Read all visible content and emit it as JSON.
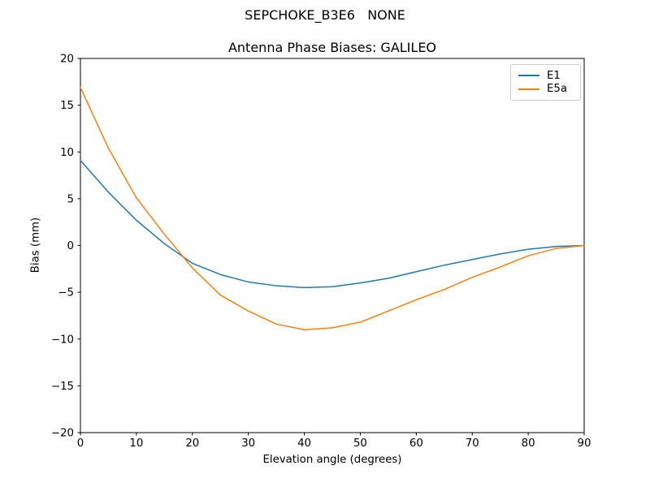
{
  "figure": {
    "title": "SEPCHOKE_B3E6   NONE",
    "subtitle": "Antenna Phase Biases: GALILEO",
    "background_color": "#ffffff"
  },
  "chart_data": {
    "type": "line",
    "suptitle": "SEPCHOKE_B3E6   NONE",
    "title": "Antenna Phase Biases: GALILEO",
    "xlabel": "Elevation angle (degrees)",
    "ylabel": "Bias (mm)",
    "xlim": [
      0,
      90
    ],
    "ylim": [
      -20,
      20
    ],
    "grid": false,
    "legend_position": "upper right",
    "x_ticks": [
      0,
      10,
      20,
      30,
      40,
      50,
      60,
      70,
      80,
      90
    ],
    "y_ticks": [
      -20,
      -15,
      -10,
      -5,
      0,
      5,
      10,
      15,
      20
    ],
    "x_tick_labels": [
      "0",
      "10",
      "20",
      "30",
      "40",
      "50",
      "60",
      "70",
      "80",
      "90"
    ],
    "y_tick_labels": [
      "−20",
      "−15",
      "−10",
      "−5",
      "0",
      "5",
      "10",
      "15",
      "20"
    ],
    "x": [
      0,
      5,
      10,
      15,
      20,
      25,
      30,
      35,
      40,
      45,
      50,
      55,
      60,
      65,
      70,
      75,
      80,
      85,
      90
    ],
    "series": [
      {
        "name": "E1",
        "color": "#1f77b4",
        "values": [
          9.1,
          5.7,
          2.7,
          0.2,
          -1.9,
          -3.1,
          -3.9,
          -4.3,
          -4.5,
          -4.4,
          -4.0,
          -3.5,
          -2.8,
          -2.1,
          -1.5,
          -0.9,
          -0.4,
          -0.1,
          0.0
        ]
      },
      {
        "name": "E5a",
        "color": "#ff7f0e",
        "values": [
          16.9,
          10.4,
          5.1,
          1.2,
          -2.4,
          -5.3,
          -7.0,
          -8.4,
          -9.0,
          -8.8,
          -8.2,
          -7.0,
          -5.8,
          -4.7,
          -3.4,
          -2.3,
          -1.1,
          -0.3,
          0.0
        ]
      }
    ]
  },
  "legend": {
    "items": [
      {
        "label": "E1",
        "color": "#1f77b4"
      },
      {
        "label": "E5a",
        "color": "#ff7f0e"
      }
    ]
  },
  "style": {
    "axis_color": "#000000",
    "line_width": 1.5
  }
}
